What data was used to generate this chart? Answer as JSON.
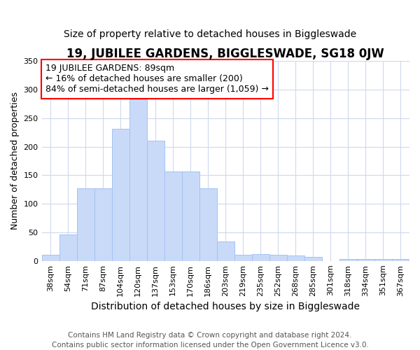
{
  "title": "19, JUBILEE GARDENS, BIGGLESWADE, SG18 0JW",
  "subtitle": "Size of property relative to detached houses in Biggleswade",
  "xlabel": "Distribution of detached houses by size in Biggleswade",
  "ylabel": "Number of detached properties",
  "footer_line1": "Contains HM Land Registry data © Crown copyright and database right 2024.",
  "footer_line2": "Contains public sector information licensed under the Open Government Licence v3.0.",
  "annotation_line1": "19 JUBILEE GARDENS: 89sqm",
  "annotation_line2": "← 16% of detached houses are smaller (200)",
  "annotation_line3": "84% of semi-detached houses are larger (1,059) →",
  "bar_labels": [
    "38sqm",
    "54sqm",
    "71sqm",
    "87sqm",
    "104sqm",
    "120sqm",
    "137sqm",
    "153sqm",
    "170sqm",
    "186sqm",
    "203sqm",
    "219sqm",
    "235sqm",
    "252sqm",
    "268sqm",
    "285sqm",
    "301sqm",
    "318sqm",
    "334sqm",
    "351sqm",
    "367sqm"
  ],
  "bar_values": [
    11,
    46,
    127,
    127,
    231,
    283,
    210,
    157,
    157,
    127,
    34,
    11,
    12,
    11,
    9,
    7,
    0,
    4,
    3,
    3,
    3
  ],
  "bar_color": "#c9daf8",
  "bar_edge_color": "#a4c2f4",
  "ylim": [
    0,
    350
  ],
  "yticks": [
    0,
    50,
    100,
    150,
    200,
    250,
    300,
    350
  ],
  "background_color": "#ffffff",
  "plot_bg_color": "#ffffff",
  "grid_color": "#d0d8f0",
  "title_fontsize": 12,
  "subtitle_fontsize": 10,
  "xlabel_fontsize": 10,
  "ylabel_fontsize": 9,
  "tick_fontsize": 8,
  "footer_fontsize": 7.5,
  "ann_fontsize": 9
}
